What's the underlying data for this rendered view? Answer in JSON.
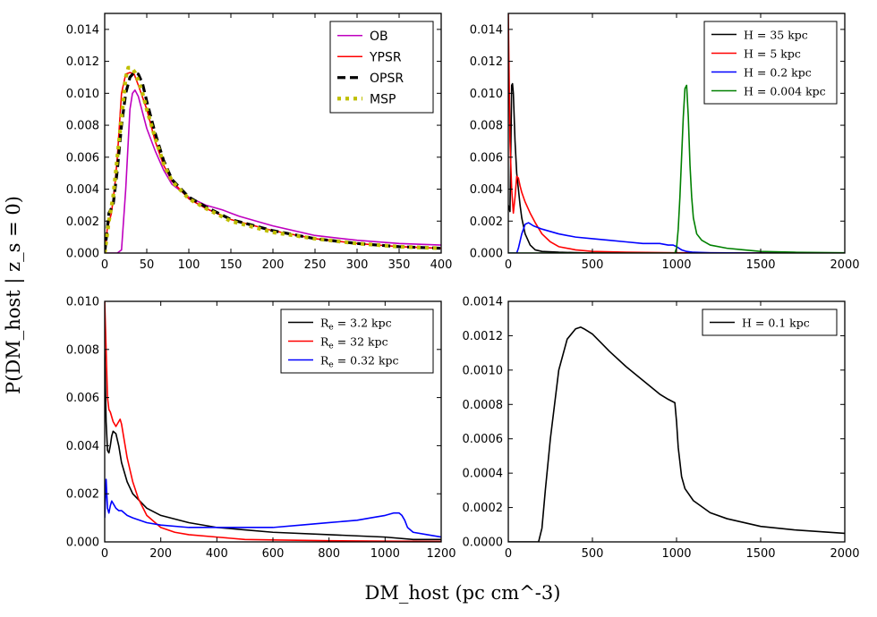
{
  "figure": {
    "ylabel": "P(DM_host | z_s = 0)",
    "xlabel": "DM_host (pc cm^-3)"
  },
  "chart_data": [
    {
      "type": "line",
      "panel": "top-left",
      "xlim": [
        0,
        400
      ],
      "ylim": [
        0,
        0.015
      ],
      "xticks": [
        0,
        50,
        100,
        150,
        200,
        250,
        300,
        350,
        400
      ],
      "xtick_labels": [
        "0",
        "50",
        "100",
        "150",
        "200",
        "250",
        "300",
        "350",
        "400"
      ],
      "yticks": [
        0,
        0.002,
        0.004,
        0.006,
        0.008,
        0.01,
        0.012,
        0.014
      ],
      "ytick_labels": [
        "0.000",
        "0.002",
        "0.004",
        "0.006",
        "0.008",
        "0.010",
        "0.012",
        "0.014"
      ],
      "legend_position": "top-right",
      "legend_font": "sans",
      "series": [
        {
          "name": "OB",
          "color": "#bf00bf",
          "style": "solid",
          "x": [
            0,
            15,
            20,
            25,
            30,
            33,
            36,
            40,
            45,
            50,
            60,
            70,
            80,
            100,
            120,
            140,
            150,
            160,
            200,
            250,
            300,
            350,
            400
          ],
          "y": [
            0,
            0,
            0.0002,
            0.004,
            0.009,
            0.01,
            0.0102,
            0.0098,
            0.0088,
            0.0078,
            0.0064,
            0.0052,
            0.0043,
            0.0035,
            0.003,
            0.0027,
            0.0025,
            0.0023,
            0.0017,
            0.0011,
            0.0008,
            0.0006,
            0.0005
          ]
        },
        {
          "name": "YPSR",
          "color": "#ff0000",
          "style": "solid",
          "x": [
            0,
            3,
            8,
            12,
            15,
            20,
            25,
            30,
            35,
            40,
            50,
            60,
            70,
            80,
            100,
            120,
            150,
            200,
            250,
            300,
            350,
            400
          ],
          "y": [
            0,
            0.0015,
            0.0025,
            0.0042,
            0.006,
            0.01,
            0.0112,
            0.0113,
            0.0112,
            0.0105,
            0.009,
            0.007,
            0.0055,
            0.0045,
            0.0034,
            0.0028,
            0.0021,
            0.0014,
            0.0009,
            0.0006,
            0.0004,
            0.0003
          ]
        },
        {
          "name": "OPSR",
          "color": "#000000",
          "style": "dashed",
          "x": [
            0,
            5,
            10,
            15,
            20,
            25,
            30,
            35,
            40,
            45,
            50,
            60,
            70,
            80,
            100,
            120,
            150,
            200,
            250,
            300,
            350,
            400
          ],
          "y": [
            0,
            0.0025,
            0.003,
            0.0052,
            0.008,
            0.01,
            0.011,
            0.0113,
            0.0112,
            0.0106,
            0.0095,
            0.0075,
            0.0058,
            0.0046,
            0.0035,
            0.0029,
            0.0021,
            0.0014,
            0.0009,
            0.0006,
            0.0004,
            0.0003
          ]
        },
        {
          "name": "MSP",
          "color": "#bfbf00",
          "style": "dotted",
          "x": [
            0,
            5,
            10,
            15,
            20,
            25,
            28,
            32,
            36,
            40,
            45,
            50,
            60,
            70,
            80,
            100,
            120,
            150,
            200,
            250,
            300,
            350,
            400
          ],
          "y": [
            0,
            0.002,
            0.0035,
            0.006,
            0.0085,
            0.011,
            0.0116,
            0.0116,
            0.0113,
            0.0108,
            0.01,
            0.009,
            0.0072,
            0.0056,
            0.0045,
            0.0034,
            0.0028,
            0.002,
            0.0013,
            0.0009,
            0.0006,
            0.0004,
            0.0003
          ]
        }
      ]
    },
    {
      "type": "line",
      "panel": "top-right",
      "xlim": [
        0,
        2000
      ],
      "ylim": [
        0,
        0.015
      ],
      "xticks": [
        0,
        500,
        1000,
        1500,
        2000
      ],
      "xtick_labels": [
        "0",
        "500",
        "1000",
        "1500",
        "2000"
      ],
      "yticks": [
        0,
        0.002,
        0.004,
        0.006,
        0.008,
        0.01,
        0.012,
        0.014
      ],
      "ytick_labels": [
        "0.000",
        "0.002",
        "0.004",
        "0.006",
        "0.008",
        "0.010",
        "0.012",
        "0.014"
      ],
      "legend_position": "top-right",
      "legend_font": "serif",
      "series": [
        {
          "name": "H = 35 kpc",
          "color": "#000000",
          "style": "solid",
          "x": [
            0,
            10,
            20,
            25,
            30,
            40,
            50,
            60,
            70,
            80,
            100,
            130,
            160,
            200,
            300,
            500,
            2000
          ],
          "y": [
            0.003,
            0.0026,
            0.0105,
            0.0106,
            0.01,
            0.007,
            0.005,
            0.004,
            0.003,
            0.0022,
            0.0012,
            0.0005,
            0.0002,
            0.0001,
            5e-05,
            0,
            0
          ]
        },
        {
          "name": "H = 5 kpc",
          "color": "#ff0000",
          "style": "solid",
          "x": [
            0,
            10,
            20,
            30,
            40,
            50,
            60,
            70,
            80,
            100,
            130,
            160,
            200,
            250,
            300,
            400,
            500,
            700,
            1000,
            2000
          ],
          "y": [
            0.015,
            0.007,
            0.004,
            0.0025,
            0.0035,
            0.0048,
            0.0047,
            0.0042,
            0.0038,
            0.0032,
            0.0025,
            0.0019,
            0.0012,
            0.0007,
            0.0004,
            0.0002,
            0.0001,
            5e-05,
            2e-05,
            0
          ]
        },
        {
          "name": "H = 0.2 kpc",
          "color": "#0000ff",
          "style": "solid",
          "x": [
            0,
            50,
            60,
            80,
            100,
            120,
            150,
            200,
            300,
            400,
            500,
            600,
            700,
            800,
            900,
            950,
            980,
            1000,
            1030,
            1060,
            1100,
            1200,
            1500,
            2000
          ],
          "y": [
            0,
            0,
            0.0003,
            0.0012,
            0.0018,
            0.0019,
            0.0017,
            0.0015,
            0.0012,
            0.001,
            0.0009,
            0.0008,
            0.0007,
            0.0006,
            0.0006,
            0.0005,
            0.0005,
            0.0004,
            0.0002,
            0.0001,
            5e-05,
            2e-05,
            0,
            0
          ]
        },
        {
          "name": "H = 0.004 kpc",
          "color": "#008000",
          "style": "solid",
          "x": [
            0,
            990,
            1000,
            1010,
            1020,
            1030,
            1040,
            1050,
            1060,
            1070,
            1080,
            1090,
            1100,
            1120,
            1150,
            1200,
            1300,
            1400,
            1500,
            1700,
            2000
          ],
          "y": [
            0,
            0,
            0.0003,
            0.0015,
            0.0035,
            0.006,
            0.0085,
            0.0103,
            0.0105,
            0.0085,
            0.0055,
            0.0035,
            0.0022,
            0.0012,
            0.0008,
            0.0005,
            0.0003,
            0.0002,
            0.0001,
            5e-05,
            2e-05
          ]
        }
      ]
    },
    {
      "type": "line",
      "panel": "bottom-left",
      "xlim": [
        0,
        1200
      ],
      "ylim": [
        0,
        0.01
      ],
      "xticks": [
        0,
        200,
        400,
        600,
        800,
        1000,
        1200
      ],
      "xtick_labels": [
        "0",
        "200",
        "400",
        "600",
        "800",
        "1000",
        "1200"
      ],
      "yticks": [
        0,
        0.002,
        0.004,
        0.006,
        0.008,
        0.01
      ],
      "ytick_labels": [
        "0.000",
        "0.002",
        "0.004",
        "0.006",
        "0.008",
        "0.010"
      ],
      "legend_position": "top-right",
      "legend_font": "serif",
      "series": [
        {
          "name": "R_e = 3.2 kpc",
          "color": "#000000",
          "style": "solid",
          "x": [
            0,
            5,
            10,
            15,
            20,
            25,
            30,
            40,
            50,
            60,
            80,
            100,
            150,
            200,
            300,
            400,
            500,
            600,
            800,
            1000,
            1100,
            1200
          ],
          "y": [
            0.008,
            0.005,
            0.0038,
            0.0037,
            0.004,
            0.0044,
            0.0046,
            0.0045,
            0.004,
            0.0033,
            0.0025,
            0.002,
            0.0014,
            0.0011,
            0.0008,
            0.0006,
            0.0005,
            0.0004,
            0.0003,
            0.0002,
            0.0001,
            0.0001
          ]
        },
        {
          "name": "R_e = 32 kpc",
          "color": "#ff0000",
          "style": "solid",
          "x": [
            0,
            5,
            10,
            15,
            20,
            30,
            40,
            50,
            55,
            60,
            70,
            80,
            100,
            120,
            150,
            200,
            250,
            300,
            400,
            500,
            600,
            800,
            1000,
            1200
          ],
          "y": [
            0.01,
            0.008,
            0.006,
            0.0055,
            0.0054,
            0.005,
            0.0048,
            0.005,
            0.0051,
            0.0049,
            0.0042,
            0.0035,
            0.0025,
            0.0018,
            0.0011,
            0.0006,
            0.0004,
            0.0003,
            0.0002,
            0.0001,
            8e-05,
            5e-05,
            3e-05,
            2e-05
          ]
        },
        {
          "name": "R_e = 0.32 kpc",
          "color": "#0000ff",
          "style": "solid",
          "x": [
            0,
            5,
            10,
            15,
            20,
            25,
            30,
            40,
            50,
            60,
            80,
            100,
            150,
            200,
            300,
            400,
            500,
            600,
            700,
            800,
            900,
            950,
            1000,
            1030,
            1050,
            1060,
            1070,
            1080,
            1100,
            1150,
            1200
          ],
          "y": [
            0.001,
            0.0026,
            0.0014,
            0.0012,
            0.0015,
            0.0017,
            0.0016,
            0.0014,
            0.0013,
            0.0013,
            0.0011,
            0.001,
            0.0008,
            0.0007,
            0.0006,
            0.0006,
            0.0006,
            0.0006,
            0.0007,
            0.0008,
            0.0009,
            0.001,
            0.0011,
            0.0012,
            0.0012,
            0.0011,
            0.0009,
            0.0006,
            0.0004,
            0.0003,
            0.0002
          ]
        }
      ]
    },
    {
      "type": "line",
      "panel": "bottom-right",
      "xlim": [
        0,
        2000
      ],
      "ylim": [
        0,
        0.0014
      ],
      "xticks": [
        0,
        500,
        1000,
        1500,
        2000
      ],
      "xtick_labels": [
        "0",
        "500",
        "1000",
        "1500",
        "2000"
      ],
      "yticks": [
        0,
        0.0002,
        0.0004,
        0.0006,
        0.0008,
        0.001,
        0.0012,
        0.0014
      ],
      "ytick_labels": [
        "0.0000",
        "0.0002",
        "0.0004",
        "0.0006",
        "0.0008",
        "0.0010",
        "0.0012",
        "0.0014"
      ],
      "legend_position": "top-right",
      "legend_font": "serif",
      "series": [
        {
          "name": "H = 0.1 kpc",
          "color": "#000000",
          "style": "solid",
          "x": [
            0,
            180,
            200,
            220,
            250,
            300,
            350,
            400,
            430,
            450,
            500,
            550,
            600,
            700,
            800,
            900,
            950,
            990,
            1000,
            1010,
            1030,
            1050,
            1100,
            1200,
            1300,
            1500,
            1700,
            2000
          ],
          "y": [
            0,
            0,
            8e-05,
            0.0003,
            0.0006,
            0.001,
            0.00118,
            0.00124,
            0.00125,
            0.00124,
            0.00121,
            0.00116,
            0.00111,
            0.00102,
            0.00094,
            0.00086,
            0.00083,
            0.00081,
            0.0007,
            0.00055,
            0.00038,
            0.00031,
            0.00024,
            0.00017,
            0.000135,
            9e-05,
            7e-05,
            5e-05
          ]
        }
      ]
    }
  ]
}
